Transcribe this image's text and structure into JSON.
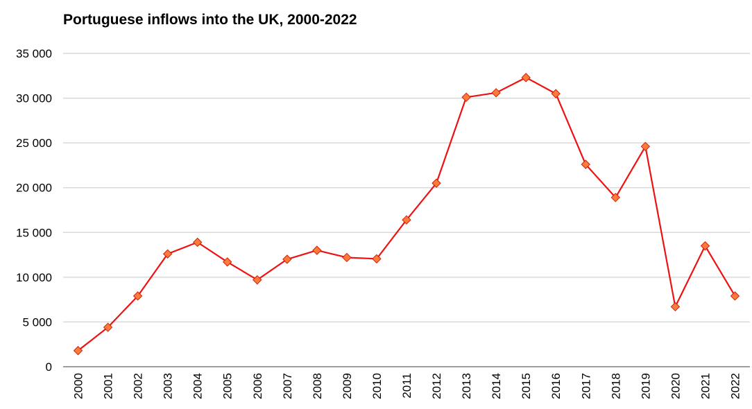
{
  "chart_data": {
    "type": "line",
    "title": "Portuguese inflows into the UK, 2000-2022",
    "xlabel": "",
    "ylabel": "",
    "categories": [
      "2000",
      "2001",
      "2002",
      "2003",
      "2004",
      "2005",
      "2006",
      "2007",
      "2008",
      "2009",
      "2010",
      "2011",
      "2012",
      "2013",
      "2014",
      "2015",
      "2016",
      "2017",
      "2018",
      "2019",
      "2020",
      "2021",
      "2022"
    ],
    "series": [
      {
        "values": [
          1800,
          4400,
          7900,
          12600,
          13900,
          11700,
          9700,
          12000,
          13000,
          12200,
          12050,
          16400,
          20500,
          30100,
          30600,
          32300,
          30500,
          22600,
          18900,
          24600,
          6700,
          13500,
          7900
        ],
        "color": "#ee1111",
        "marker_color": "#ff7a3d",
        "marker": "diamond"
      }
    ],
    "ylim": [
      0,
      35000
    ],
    "yticks": [
      0,
      5000,
      10000,
      15000,
      20000,
      25000,
      30000,
      35000
    ],
    "ytick_labels": [
      "0",
      "5 000",
      "10 000",
      "15 000",
      "20 000",
      "25 000",
      "30 000",
      "35 000"
    ],
    "grid": true,
    "grid_color": "#d9d9d9",
    "axis_color": "#7f7f7f",
    "legend": "none"
  }
}
